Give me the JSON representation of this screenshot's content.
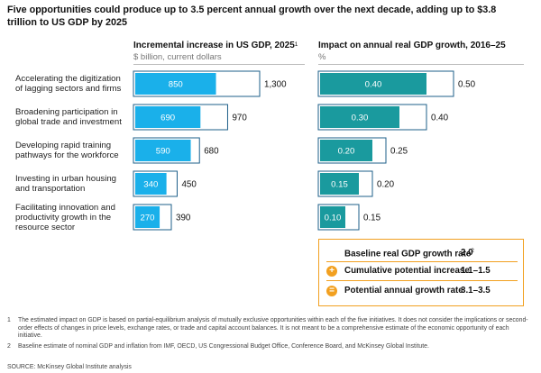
{
  "title": "Five opportunities could produce up to 3.5 percent annual growth over the next decade, adding up to $3.8 trillion to US GDP by 2025",
  "left_panel": {
    "title": "Incremental increase in US GDP, 2025",
    "footnote_mark": "1",
    "subtitle": "$ billion, current dollars"
  },
  "right_panel": {
    "title": "Impact on annual real GDP growth, 2016–25",
    "subtitle": "%"
  },
  "rows": [
    {
      "label": "Accelerating the digitization of lagging sectors and firms"
    },
    {
      "label": "Broadening participation in global trade and investment"
    },
    {
      "label": "Developing rapid training pathways for the workforce"
    },
    {
      "label": "Investing in urban housing and transportation"
    },
    {
      "label": "Facilitating innovation and productivity growth in the resource sector"
    }
  ],
  "chart_data": [
    {
      "type": "bar",
      "title": "Incremental increase in US GDP, 2025",
      "ylabel": "$ billion, current dollars",
      "categories": [
        "Accelerating the digitization of lagging sectors and firms",
        "Broadening participation in global trade and investment",
        "Developing rapid training pathways for the workforce",
        "Investing in urban housing and transportation",
        "Facilitating innovation and productivity growth in the resource sector"
      ],
      "series": [
        {
          "name": "",
          "values": [
            850,
            690,
            590,
            340,
            270
          ],
          "color": "#1ab0ea"
        },
        {
          "name": "",
          "values": [
            1300,
            970,
            680,
            450,
            390
          ],
          "color": "#ffffff"
        }
      ],
      "value_labels_inner": [
        "850",
        "690",
        "590",
        "340",
        "270"
      ],
      "value_labels_outer": [
        "1,300",
        "970",
        "680",
        "450",
        "390"
      ]
    },
    {
      "type": "bar",
      "title": "Impact on annual real GDP growth, 2016–25",
      "ylabel": "%",
      "categories": [
        "Accelerating the digitization of lagging sectors and firms",
        "Broadening participation in global trade and investment",
        "Developing rapid training pathways for the workforce",
        "Investing in urban housing and transportation",
        "Facilitating innovation and productivity growth in the resource sector"
      ],
      "series": [
        {
          "name": "",
          "values": [
            0.4,
            0.3,
            0.2,
            0.15,
            0.1
          ],
          "color": "#1a9a9e"
        },
        {
          "name": "",
          "values": [
            0.5,
            0.4,
            0.25,
            0.2,
            0.15
          ],
          "color": "#ffffff"
        }
      ],
      "value_labels_inner": [
        "0.40",
        "0.30",
        "0.20",
        "0.15",
        "0.10"
      ],
      "value_labels_outer": [
        "0.50",
        "0.40",
        "0.25",
        "0.20",
        "0.15"
      ]
    }
  ],
  "legend": {
    "baseline": {
      "label": "Baseline real GDP growth rate",
      "mark": "2",
      "value": "2.0"
    },
    "cumulative": {
      "symbol": "+",
      "label": "Cumulative potential increase",
      "value": "1.1–1.5"
    },
    "potential": {
      "symbol": "=",
      "label": "Potential annual growth rate",
      "value": "3.1–3.5"
    }
  },
  "footnotes": [
    {
      "num": "1",
      "text": "The estimated impact on GDP is based on partial-equilibrium analysis of mutually exclusive opportunities within each of the five initiatives. It does not consider the implications or second-order effects of changes in price levels, exchange rates, or trade and capital account balances. It is not meant to be a comprehensive estimate of the economic opportunity of each initiative."
    },
    {
      "num": "2",
      "text": "Baseline estimate of nominal GDP and inflation from IMF, OECD, US Congressional Budget Office, Conference Board, and McKinsey Global Institute."
    }
  ],
  "source": "SOURCE: McKinsey Global Institute analysis",
  "colors": {
    "left_bar": "#1ab0ea",
    "right_bar": "#1a9a9e",
    "outline": "#1d5f8a",
    "legend_accent": "#f2a020"
  }
}
